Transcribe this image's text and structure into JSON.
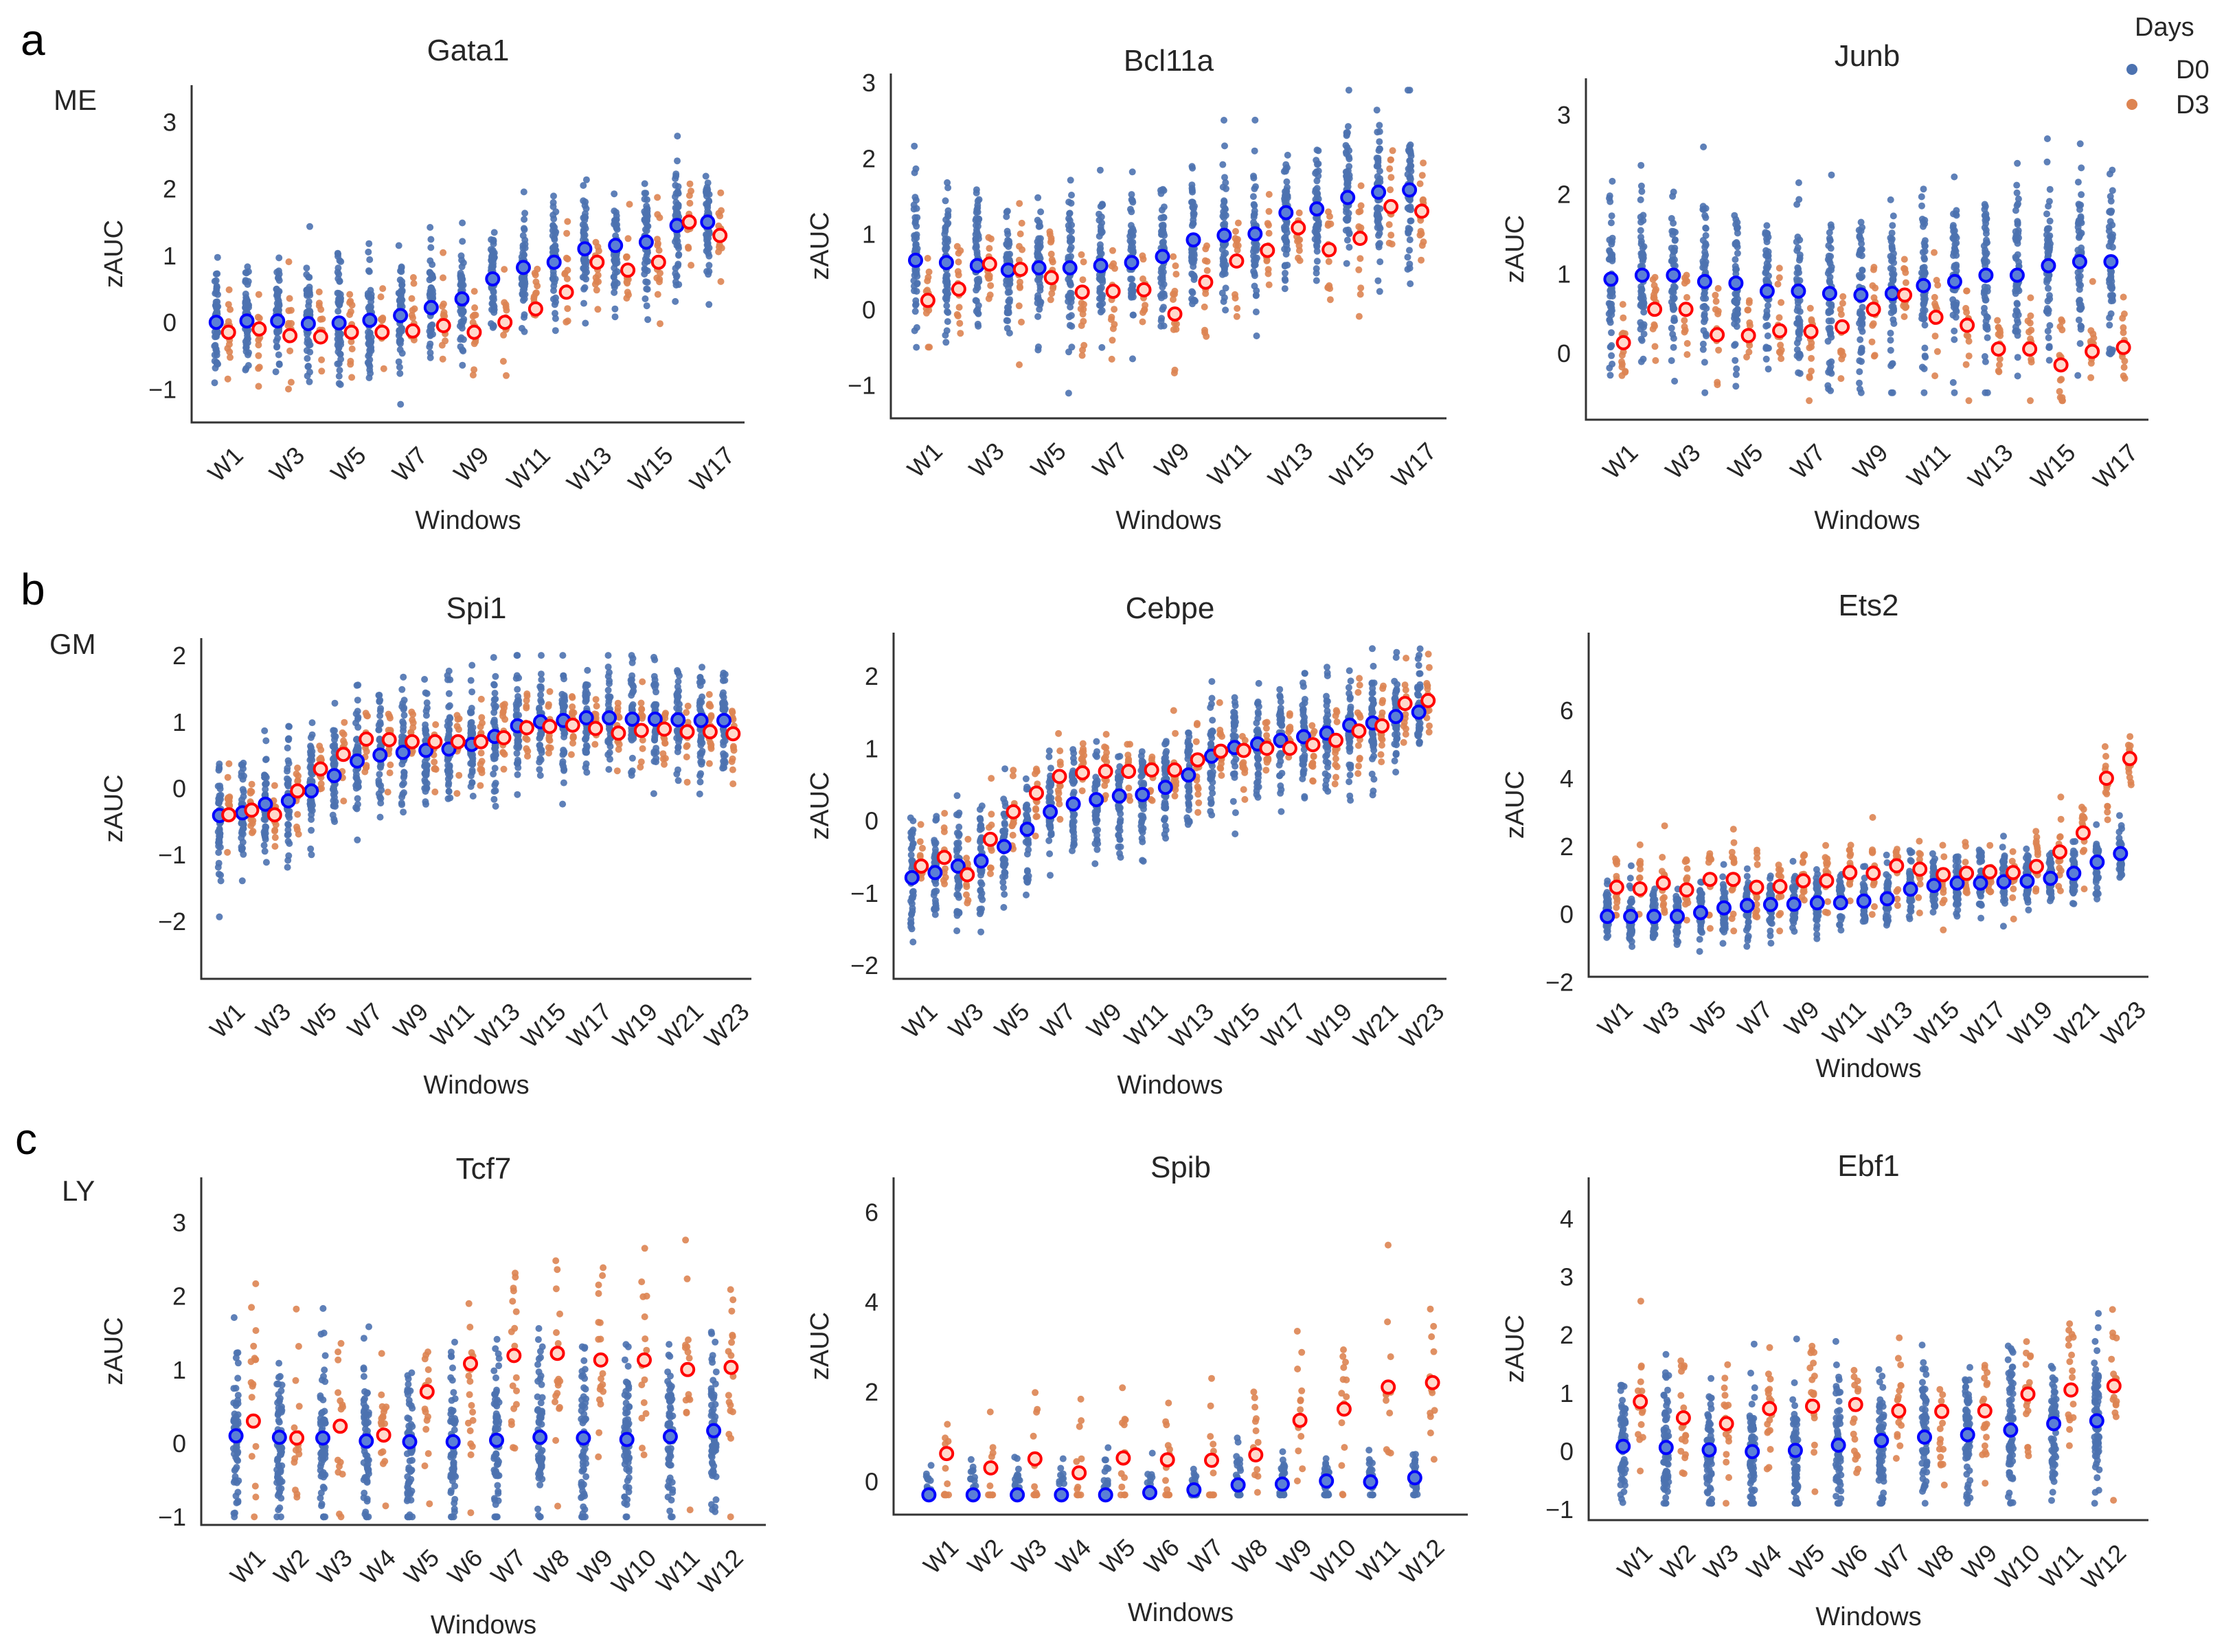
{
  "legend": {
    "title": "Days",
    "items": [
      {
        "label": "D0",
        "color": "#4c72b0",
        "mean_color": "#0000ff"
      },
      {
        "label": "D3",
        "color": "#dd8452",
        "mean_color": "#ff0000"
      }
    ]
  },
  "rows": [
    {
      "letter": "a",
      "label": "ME"
    },
    {
      "letter": "b",
      "label": "GM"
    },
    {
      "letter": "c",
      "label": "LY"
    }
  ],
  "chart_data": [
    {
      "type": "scatter",
      "subtype": "strip",
      "row": 0,
      "title": "Gata1",
      "xlabel": "Windows",
      "ylabel": "zAUC",
      "n_windows": 17,
      "label_step": 2,
      "ylim": [
        -1.5,
        3.55
      ],
      "yticks": [
        -1,
        0,
        1,
        2,
        3
      ],
      "series": [
        {
          "name": "D0",
          "mean": [
            0,
            0.02,
            0.02,
            -0.02,
            -0.01,
            0.03,
            0.1,
            0.22,
            0.35,
            0.65,
            0.82,
            0.9,
            1.1,
            1.15,
            1.2,
            1.45,
            1.5
          ],
          "sd": 0.45,
          "range": [
            -1.3,
            3.3
          ],
          "n": 55
        },
        {
          "name": "D3",
          "mean": [
            -0.15,
            -0.1,
            -0.2,
            -0.22,
            -0.15,
            -0.15,
            -0.13,
            -0.05,
            -0.15,
            0,
            0.2,
            0.45,
            0.9,
            0.78,
            0.9,
            1.5,
            1.3
          ],
          "sd": 0.35,
          "range": [
            -1,
            2.2
          ],
          "n": 14
        }
      ]
    },
    {
      "type": "scatter",
      "subtype": "strip",
      "row": 0,
      "title": "Bcl11a",
      "xlabel": "Windows",
      "ylabel": "zAUC",
      "n_windows": 17,
      "label_step": 2,
      "ylim": [
        -1.44,
        3.12
      ],
      "yticks": [
        -1,
        0,
        1,
        2,
        3
      ],
      "series": [
        {
          "name": "D0",
          "mean": [
            0.65,
            0.62,
            0.58,
            0.52,
            0.55,
            0.55,
            0.58,
            0.62,
            0.7,
            0.92,
            0.98,
            1.0,
            1.28,
            1.33,
            1.48,
            1.55,
            1.58
          ],
          "sd": 0.5,
          "range": [
            -1.3,
            2.9
          ],
          "n": 55
        },
        {
          "name": "D3",
          "mean": [
            0.12,
            0.27,
            0.6,
            0.53,
            0.42,
            0.23,
            0.24,
            0.26,
            -0.06,
            0.36,
            0.64,
            0.78,
            1.08,
            0.79,
            0.94,
            1.36,
            1.3
          ],
          "sd": 0.4,
          "range": [
            -1.1,
            2.1
          ],
          "n": 14
        }
      ]
    },
    {
      "type": "scatter",
      "subtype": "strip",
      "row": 0,
      "title": "Junb",
      "xlabel": "Windows",
      "ylabel": "zAUC",
      "n_windows": 17,
      "label_step": 2,
      "ylim": [
        -0.84,
        3.46
      ],
      "yticks": [
        0,
        1,
        2,
        3
      ],
      "series": [
        {
          "name": "D0",
          "mean": [
            0.93,
            0.98,
            0.98,
            0.9,
            0.88,
            0.78,
            0.78,
            0.75,
            0.73,
            0.75,
            0.85,
            0.9,
            0.98,
            0.98,
            1.1,
            1.15,
            1.15
          ],
          "sd": 0.55,
          "range": [
            -0.5,
            3.2
          ],
          "n": 55
        },
        {
          "name": "D3",
          "mean": [
            0.13,
            0.55,
            0.55,
            0.23,
            0.22,
            0.28,
            0.27,
            0.33,
            0.55,
            0.73,
            0.45,
            0.35,
            0.05,
            0.05,
            -0.15,
            0.02,
            0.07
          ],
          "sd": 0.35,
          "range": [
            -0.6,
            1.7
          ],
          "n": 14
        }
      ]
    },
    {
      "type": "scatter",
      "subtype": "strip",
      "row": 1,
      "title": "Spi1",
      "xlabel": "Windows",
      "ylabel": "zAUC",
      "n_windows": 23,
      "label_step": 2,
      "ylim": [
        -2.87,
        2.26
      ],
      "yticks": [
        -2,
        -1,
        0,
        1,
        2
      ],
      "series": [
        {
          "name": "D0",
          "mean": [
            -0.41,
            -0.37,
            -0.24,
            -0.19,
            -0.04,
            0.19,
            0.41,
            0.5,
            0.54,
            0.57,
            0.59,
            0.66,
            0.78,
            0.94,
            1.0,
            1.02,
            1.06,
            1.06,
            1.04,
            1.04,
            1.03,
            1.02,
            1.02
          ],
          "sd": 0.45,
          "range": [
            -2.7,
            2.0
          ],
          "n": 45
        },
        {
          "name": "D3",
          "mean": [
            -0.4,
            -0.33,
            -0.4,
            -0.04,
            0.29,
            0.51,
            0.74,
            0.73,
            0.7,
            0.7,
            0.7,
            0.7,
            0.76,
            0.91,
            0.93,
            0.95,
            0.9,
            0.83,
            0.87,
            0.89,
            0.85,
            0.85,
            0.82
          ],
          "sd": 0.3,
          "range": [
            -2.3,
            2.0
          ],
          "n": 14
        }
      ]
    },
    {
      "type": "scatter",
      "subtype": "strip",
      "row": 1,
      "title": "Cebpe",
      "xlabel": "Windows",
      "ylabel": "zAUC",
      "n_windows": 23,
      "label_step": 2,
      "ylim": [
        -2.19,
        2.6
      ],
      "yticks": [
        -2,
        -1,
        0,
        1,
        2
      ],
      "series": [
        {
          "name": "D0",
          "mean": [
            -0.79,
            -0.72,
            -0.63,
            -0.56,
            -0.36,
            -0.12,
            0.12,
            0.23,
            0.29,
            0.34,
            0.36,
            0.46,
            0.63,
            0.89,
            1.01,
            1.06,
            1.11,
            1.16,
            1.21,
            1.32,
            1.35,
            1.44,
            1.5
          ],
          "sd": 0.4,
          "range": [
            -2.0,
            2.4
          ],
          "n": 45
        },
        {
          "name": "D3",
          "mean": [
            -0.63,
            -0.51,
            -0.75,
            -0.26,
            0.12,
            0.38,
            0.61,
            0.66,
            0.68,
            0.68,
            0.7,
            0.7,
            0.84,
            0.96,
            0.97,
            1.0,
            1.0,
            1.05,
            1.11,
            1.24,
            1.31,
            1.62,
            1.66
          ],
          "sd": 0.3,
          "range": [
            -1.8,
            2.4
          ],
          "n": 14
        }
      ]
    },
    {
      "type": "scatter",
      "subtype": "strip",
      "row": 1,
      "title": "Ets2",
      "xlabel": "Windows",
      "ylabel": "zAUC",
      "n_windows": 23,
      "label_step": 2,
      "ylim": [
        -1.85,
        8.29
      ],
      "yticks": [
        -2,
        0,
        2,
        4,
        6
      ],
      "series": [
        {
          "name": "D0",
          "mean": [
            -0.07,
            -0.07,
            -0.07,
            -0.07,
            0.04,
            0.18,
            0.25,
            0.28,
            0.29,
            0.33,
            0.33,
            0.38,
            0.45,
            0.73,
            0.84,
            0.91,
            0.91,
            0.95,
            0.97,
            1.05,
            1.2,
            1.53,
            1.78
          ],
          "sd": 0.45,
          "range": [
            -1.4,
            3.5
          ],
          "n": 45
        },
        {
          "name": "D3",
          "mean": [
            0.79,
            0.74,
            0.91,
            0.71,
            1.02,
            1.02,
            0.79,
            0.81,
            0.98,
            0.98,
            1.22,
            1.2,
            1.42,
            1.32,
            1.16,
            1.2,
            1.24,
            1.22,
            1.4,
            1.83,
            2.39,
            4.0,
            4.58
          ],
          "sd": 0.6,
          "range": [
            -0.5,
            7.7
          ],
          "n": 14
        }
      ]
    },
    {
      "type": "scatter",
      "subtype": "strip",
      "row": 2,
      "title": "Tcf7",
      "xlabel": "Windows",
      "ylabel": "zAUC",
      "n_windows": 12,
      "label_step": 1,
      "ylim": [
        -1.11,
        3.61
      ],
      "yticks": [
        -1,
        0,
        1,
        2,
        3
      ],
      "series": [
        {
          "name": "D0",
          "mean": [
            0.1,
            0.08,
            0.07,
            0.03,
            0.02,
            0.02,
            0.04,
            0.08,
            0.07,
            0.05,
            0.09,
            0.17
          ],
          "sd": 0.6,
          "range": [
            -1.0,
            2.7
          ],
          "n": 70
        },
        {
          "name": "D3",
          "mean": [
            0.3,
            0.07,
            0.23,
            0.11,
            0.7,
            1.08,
            1.19,
            1.22,
            1.13,
            1.13,
            1.0,
            1.03
          ],
          "sd": 0.8,
          "range": [
            -1.0,
            3.3
          ],
          "n": 18
        }
      ]
    },
    {
      "type": "scatter",
      "subtype": "strip",
      "row": 2,
      "title": "Spib",
      "xlabel": "Windows",
      "ylabel": "zAUC",
      "n_windows": 12,
      "label_step": 1,
      "ylim": [
        -0.74,
        6.77
      ],
      "yticks": [
        0,
        2,
        4,
        6
      ],
      "series": [
        {
          "name": "D0",
          "mean": [
            -0.3,
            -0.3,
            -0.3,
            -0.3,
            -0.3,
            -0.25,
            -0.19,
            -0.08,
            -0.06,
            0.01,
            -0.01,
            0.08
          ],
          "sd": 0.4,
          "range": [
            -0.3,
            6.3
          ],
          "n": 30
        },
        {
          "name": "D3",
          "mean": [
            0.62,
            0.3,
            0.5,
            0.19,
            0.52,
            0.48,
            0.47,
            0.59,
            1.36,
            1.61,
            2.1,
            2.2
          ],
          "sd": 1.0,
          "range": [
            -0.3,
            6.0
          ],
          "n": 14
        }
      ]
    },
    {
      "type": "scatter",
      "subtype": "strip",
      "row": 2,
      "title": "Ebf1",
      "xlabel": "Windows",
      "ylabel": "zAUC",
      "n_windows": 12,
      "label_step": 1,
      "ylim": [
        -1.19,
        4.71
      ],
      "yticks": [
        -1,
        0,
        1,
        2,
        3,
        4
      ],
      "series": [
        {
          "name": "D0",
          "mean": [
            0.08,
            0.06,
            0.02,
            -0.01,
            0.01,
            0.1,
            0.18,
            0.24,
            0.28,
            0.36,
            0.47,
            0.52
          ],
          "sd": 0.6,
          "range": [
            -0.9,
            2.6
          ],
          "n": 70
        },
        {
          "name": "D3",
          "mean": [
            0.85,
            0.57,
            0.47,
            0.73,
            0.77,
            0.8,
            0.69,
            0.68,
            0.69,
            0.98,
            1.05,
            1.12
          ],
          "sd": 0.6,
          "range": [
            -0.9,
            4.4
          ],
          "n": 18
        }
      ]
    }
  ]
}
